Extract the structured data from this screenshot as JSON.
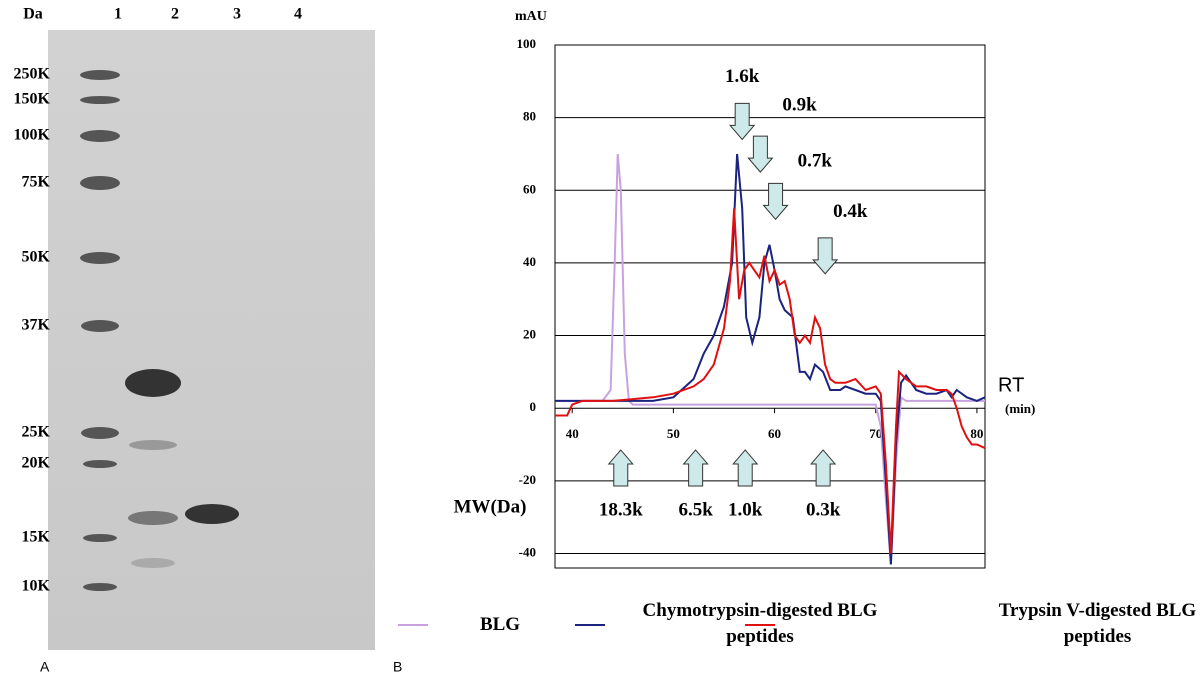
{
  "panel_a": {
    "label": "A",
    "unit": "Da",
    "lanes": [
      "1",
      "2",
      "3",
      "4"
    ],
    "markers": [
      "250K",
      "150K",
      "100K",
      "75K",
      "50K",
      "37K",
      "25K",
      "20K",
      "15K",
      "10K"
    ]
  },
  "chart_data": {
    "type": "line",
    "label": "B",
    "y_unit": "mAU",
    "x_unit": "RT",
    "x_unit_note": "(min)",
    "xlim": [
      38.3,
      80.8
    ],
    "xticks": [
      40,
      50,
      60,
      70,
      80
    ],
    "ylim": [
      -44,
      100
    ],
    "yticks": [
      -40,
      -20,
      0,
      20,
      40,
      60,
      80,
      100
    ],
    "grid": true,
    "series": [
      {
        "name": "BLG",
        "color": "#c8a2e0",
        "x": [
          38.3,
          43,
          43.8,
          44.2,
          44.5,
          44.8,
          45.2,
          45.6,
          46,
          70,
          70.5,
          71,
          71.5,
          72,
          72.5,
          73,
          80.8
        ],
        "values": [
          2,
          2,
          5,
          40,
          70,
          60,
          15,
          2,
          1,
          1,
          -5,
          -25,
          -43,
          -15,
          3,
          2,
          2
        ]
      },
      {
        "name": "Chymotrypsin-digested BLG peptides",
        "color": "#1a237e",
        "x": [
          38.3,
          48,
          50,
          52,
          53,
          54,
          55,
          55.8,
          56.3,
          56.8,
          57.2,
          57.8,
          58.5,
          59,
          59.5,
          60,
          60.5,
          61,
          61.8,
          62.5,
          63,
          63.5,
          64,
          64.8,
          65.5,
          66.5,
          67,
          68,
          69,
          70,
          70.5,
          71,
          71.5,
          72,
          72.5,
          73,
          74,
          75,
          76,
          77,
          77.5,
          78,
          79,
          80,
          80.8
        ],
        "values": [
          2,
          2,
          3,
          8,
          15,
          20,
          28,
          40,
          70,
          55,
          25,
          18,
          25,
          40,
          45,
          38,
          30,
          27,
          25,
          10,
          10,
          8,
          12,
          10,
          5,
          5,
          6,
          5,
          4,
          4,
          2,
          -20,
          -43,
          -10,
          7,
          9,
          5,
          4,
          4,
          5,
          3,
          5,
          3,
          2,
          3
        ]
      },
      {
        "name": "Trypsin V-digested BLG peptides",
        "color": "#e01010",
        "x": [
          38.3,
          39,
          39.5,
          40,
          41,
          44,
          48,
          50,
          52,
          53,
          54,
          55,
          55.6,
          56,
          56.5,
          57,
          57.5,
          58,
          58.5,
          59,
          59.5,
          60,
          60.5,
          61,
          61.5,
          62,
          62.5,
          63,
          63.5,
          64,
          64.5,
          65,
          65.5,
          66,
          67,
          68,
          69,
          70,
          70.5,
          71,
          71.5,
          72,
          72.3,
          73,
          74,
          75,
          76,
          77,
          77.5,
          78,
          78.5,
          79,
          79.5,
          80,
          80.8
        ],
        "values": [
          -2,
          -2,
          -2,
          1,
          2,
          2,
          3,
          4,
          6,
          8,
          12,
          22,
          35,
          55,
          30,
          38,
          40,
          38,
          36,
          42,
          35,
          38,
          34,
          35,
          30,
          20,
          18,
          20,
          18,
          25,
          22,
          12,
          8,
          7,
          7,
          8,
          5,
          6,
          4,
          -15,
          -40,
          -5,
          10,
          8,
          6,
          6,
          5,
          5,
          4,
          0,
          -5,
          -8,
          -10,
          -10,
          -11
        ]
      }
    ],
    "annotations": [
      {
        "text": "1.6k",
        "x": 56.8,
        "y": 74
      },
      {
        "text": "0.9k",
        "x": 58.6,
        "y": 65
      },
      {
        "text": "0.7k",
        "x": 60.1,
        "y": 52
      },
      {
        "text": "0.4k",
        "x": 65,
        "y": 37
      }
    ],
    "mw_label": "MW(Da)",
    "mw_annotations": [
      {
        "text": "18.3k",
        "x": 44.8,
        "y": -11.5
      },
      {
        "text": "6.5k",
        "x": 52.2,
        "y": -11.5
      },
      {
        "text": "1.0k",
        "x": 57.1,
        "y": -11.5
      },
      {
        "text": "0.3k",
        "x": 64.8,
        "y": -11.5
      }
    ]
  }
}
